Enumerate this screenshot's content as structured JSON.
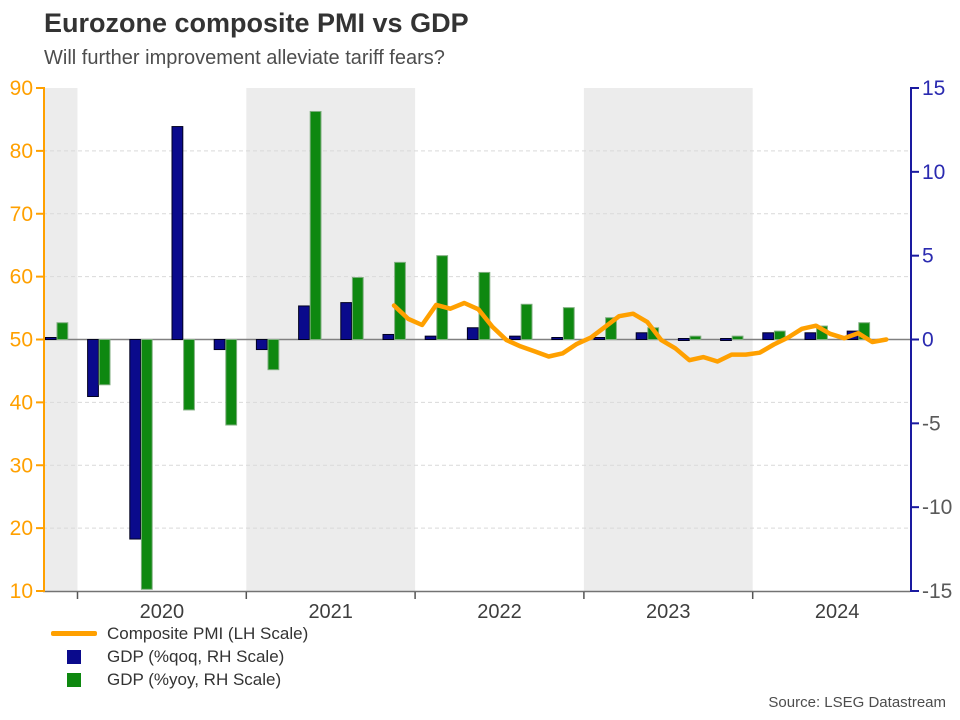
{
  "header": {
    "title": "Eurozone composite PMI vs GDP",
    "subtitle": "Will further improvement alleviate tariff fears?"
  },
  "source": "Source: LSEG Datastream",
  "legend": [
    {
      "type": "line",
      "color": "#FFA000",
      "label": "Composite PMI (LH Scale)"
    },
    {
      "type": "square",
      "color": "#0A0A8C",
      "label": "GDP (%qoq, RH Scale)"
    },
    {
      "type": "square",
      "color": "#0E8810",
      "label": "GDP (%yoy, RH Scale)"
    }
  ],
  "chart_data": {
    "type": "combo-bar-line",
    "title": "Eurozone composite PMI vs GDP",
    "subtitle": "Will further improvement alleviate tariff fears?",
    "left_axis": {
      "title": "Composite PMI (LH Scale)",
      "min": 10,
      "max": 90,
      "tick_step": 10,
      "ticks": [
        90,
        80,
        70,
        60,
        50,
        40,
        30,
        20,
        10
      ],
      "color": "#FFA000"
    },
    "right_axis": {
      "title": "GDP % (RH Scale)",
      "min": -15,
      "max": 15,
      "tick_step": 5,
      "ticks": [
        15,
        10,
        5,
        0,
        -5,
        -10,
        -15
      ],
      "axis_color": "#1A1AA0",
      "positive_label_color": "#2A2AB0",
      "negative_label_color": "#595959"
    },
    "x_axis": {
      "year_labels": [
        "2020",
        "2021",
        "2022",
        "2023",
        "2024"
      ],
      "shaded_years": [
        "2019",
        "2021",
        "2023"
      ],
      "band_color": "#ececec",
      "label_color": "#3d3d3d"
    },
    "grid": {
      "show_horizontal": true,
      "line_color": "#d9d9d9",
      "zero_line_color": "#808080"
    },
    "bars": {
      "unit": "percent, right-hand scale",
      "quarters": [
        "2019-Q4",
        "2020-Q1",
        "2020-Q2",
        "2020-Q3",
        "2020-Q4",
        "2021-Q1",
        "2021-Q2",
        "2021-Q3",
        "2021-Q4",
        "2022-Q1",
        "2022-Q2",
        "2022-Q3",
        "2022-Q4",
        "2023-Q1",
        "2023-Q2",
        "2023-Q3",
        "2023-Q4",
        "2024-Q1",
        "2024-Q2",
        "2024-Q3"
      ],
      "series": [
        {
          "name": "GDP (%qoq, RH Scale)",
          "color": "#0A0A8C",
          "edge_color": "#000020",
          "values": [
            0.1,
            -3.4,
            -11.9,
            12.7,
            -0.6,
            -0.6,
            2.0,
            2.2,
            0.3,
            0.2,
            0.7,
            0.2,
            0.1,
            0.1,
            0.4,
            0.0,
            0.0,
            0.4,
            0.4,
            0.5
          ]
        },
        {
          "name": "GDP (%yoy, RH Scale)",
          "color": "#0E8810",
          "edge_color": "#7FAE7F",
          "values": [
            1.0,
            -2.7,
            -14.9,
            -4.2,
            -5.1,
            -1.8,
            13.6,
            3.7,
            4.6,
            5.0,
            4.0,
            2.1,
            1.9,
            1.3,
            0.7,
            0.2,
            0.2,
            0.5,
            0.8,
            1.0
          ]
        }
      ]
    },
    "line": {
      "name": "Composite PMI (LH Scale)",
      "color": "#FFA000",
      "scale": "left",
      "months": [
        "2021-11",
        "2021-12",
        "2022-01",
        "2022-02",
        "2022-03",
        "2022-04",
        "2022-05",
        "2022-06",
        "2022-07",
        "2022-08",
        "2022-09",
        "2022-10",
        "2022-11",
        "2022-12",
        "2023-01",
        "2023-02",
        "2023-03",
        "2023-04",
        "2023-05",
        "2023-06",
        "2023-07",
        "2023-08",
        "2023-09",
        "2023-10",
        "2023-11",
        "2023-12",
        "2024-01",
        "2024-02",
        "2024-03",
        "2024-04",
        "2024-05",
        "2024-06",
        "2024-07",
        "2024-08",
        "2024-09",
        "2024-10"
      ],
      "values": [
        55.4,
        53.3,
        52.3,
        55.5,
        54.9,
        55.8,
        54.8,
        52.0,
        49.9,
        48.9,
        48.1,
        47.3,
        47.8,
        49.3,
        50.3,
        52.0,
        53.7,
        54.1,
        52.8,
        49.9,
        48.6,
        46.7,
        47.2,
        46.5,
        47.6,
        47.6,
        47.9,
        49.2,
        50.3,
        51.7,
        52.2,
        50.9,
        50.2,
        51.0,
        49.6,
        50.0
      ]
    }
  }
}
